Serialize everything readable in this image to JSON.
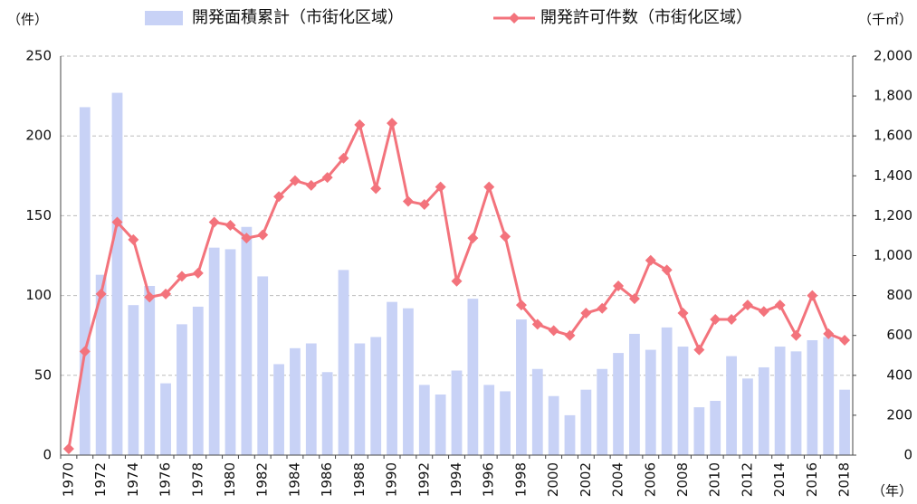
{
  "chart_data": {
    "type": "bar-line",
    "y_unit": "（件）",
    "y2_unit": "（千㎡）",
    "x_unit": "（年）",
    "categories": [
      "1970",
      null,
      "1972",
      null,
      "1974",
      null,
      "1976",
      null,
      "1978",
      null,
      "1980",
      null,
      "1982",
      null,
      "1984",
      null,
      "1986",
      null,
      "1988",
      null,
      "1990",
      null,
      "1992",
      null,
      "1994",
      null,
      "1996",
      null,
      "1998",
      null,
      "2000",
      null,
      "2002",
      null,
      "2004",
      null,
      "2006",
      null,
      "2008",
      null,
      "2010",
      null,
      "2012",
      null,
      "2014",
      null,
      "2016",
      null,
      "2018"
    ],
    "series": [
      {
        "name": "開発面積累計（市街化区域）",
        "type": "bar",
        "axis": "y2",
        "color": "#c8d2f6",
        "values": [
          0,
          1744,
          904,
          1816,
          752,
          848,
          360,
          656,
          744,
          1040,
          1032,
          1144,
          896,
          456,
          536,
          560,
          416,
          928,
          560,
          592,
          768,
          736,
          352,
          304,
          424,
          784,
          352,
          320,
          680,
          432,
          296,
          200,
          328,
          432,
          512,
          608,
          528,
          640,
          544,
          240,
          272,
          496,
          384,
          440,
          544,
          520,
          576,
          592,
          328
        ]
      },
      {
        "name": "開発許可件数（市街化区域）",
        "type": "line",
        "axis": "y",
        "color": "#f3737c",
        "values": [
          4,
          65,
          101,
          146,
          135,
          99,
          101,
          112,
          114,
          146,
          144,
          136,
          138,
          162,
          172,
          169,
          174,
          186,
          207,
          167,
          208,
          159,
          157,
          168,
          109,
          136,
          168,
          137,
          94,
          82,
          78,
          75,
          89,
          92,
          106,
          98,
          122,
          116,
          89,
          66,
          85,
          85,
          94,
          90,
          94,
          75,
          100,
          76,
          72
        ]
      }
    ],
    "ylim": [
      0,
      250
    ],
    "yticks": [
      0,
      50,
      100,
      150,
      200,
      250
    ],
    "y2lim": [
      0,
      2000
    ],
    "y2ticks": [
      0,
      200,
      400,
      600,
      800,
      {
        "value": 1000,
        "label": "1,000"
      },
      {
        "value": 1200,
        "label": "1,200"
      },
      {
        "value": 1400,
        "label": "1,400"
      },
      {
        "value": 1600,
        "label": "1,600"
      },
      {
        "value": 1800,
        "label": "1,800"
      },
      {
        "value": 2000,
        "label": "2,000"
      }
    ],
    "grid": true
  }
}
